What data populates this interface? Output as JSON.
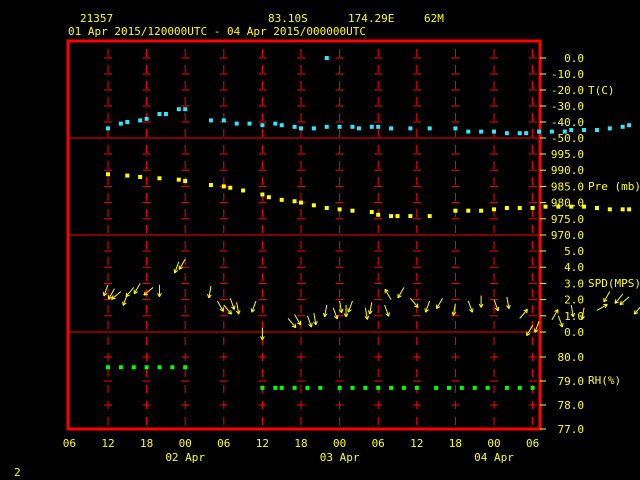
{
  "header": {
    "station_id": "21357",
    "latitude": "83.10S",
    "longitude": "174.29E",
    "elevation": "62M",
    "time_range": "01 Apr 2015/120000UTC - 04 Apr 2015/000000UTC"
  },
  "page_number": "2",
  "colors": {
    "background": "#000000",
    "frame": "#ff0000",
    "grid": "#ff0000",
    "labels": "#ffff00",
    "temperature": "#33e6ff",
    "pressure": "#ffff00",
    "wind": "#ffff00",
    "humidity": "#00ff00"
  },
  "x_axis": {
    "tick_labels": [
      "06",
      "12",
      "18",
      "00",
      "06",
      "12",
      "18",
      "00",
      "06",
      "12",
      "18",
      "00",
      "06"
    ],
    "tick_hours": [
      -6,
      0,
      6,
      12,
      18,
      24,
      30,
      36,
      42,
      48,
      54,
      60,
      66
    ],
    "day_labels": [
      {
        "text": "02 Apr",
        "hour": 12
      },
      {
        "text": "03 Apr",
        "hour": 36
      },
      {
        "text": "04 Apr",
        "hour": 60
      }
    ]
  },
  "chart_data": [
    {
      "type": "scatter",
      "name": "T(C)",
      "ylabel": "T(C)",
      "yticks": [
        "0.0",
        "-10.0",
        "-20.0",
        "-30.0",
        "-40.0",
        "-50.0"
      ],
      "ylim": [
        -50,
        0
      ],
      "x_unit": "hours since 01 Apr 2015 12:00 UTC",
      "points": [
        [
          0,
          -44
        ],
        [
          2,
          -41
        ],
        [
          3,
          -40
        ],
        [
          5,
          -39
        ],
        [
          6,
          -38
        ],
        [
          8,
          -35
        ],
        [
          9,
          -35
        ],
        [
          11,
          -32
        ],
        [
          12,
          -32
        ],
        [
          16,
          -39
        ],
        [
          18,
          -39
        ],
        [
          20,
          -41
        ],
        [
          22,
          -41
        ],
        [
          24,
          -42
        ],
        [
          26,
          -41
        ],
        [
          27,
          -42
        ],
        [
          29,
          -43
        ],
        [
          30,
          -44
        ],
        [
          32,
          -44
        ],
        [
          34,
          -43
        ],
        [
          36,
          -43
        ],
        [
          38,
          -43
        ],
        [
          39,
          -44
        ],
        [
          41,
          -43
        ],
        [
          42,
          -43
        ],
        [
          44,
          -44
        ],
        [
          47,
          -44
        ],
        [
          50,
          -44
        ],
        [
          54,
          -44
        ],
        [
          56,
          -46
        ],
        [
          58,
          -46
        ],
        [
          60,
          -46
        ],
        [
          62,
          -47
        ],
        [
          64,
          -47
        ],
        [
          65,
          -47
        ],
        [
          67,
          -46
        ],
        [
          69,
          -46
        ],
        [
          71,
          -46
        ],
        [
          72,
          -45
        ],
        [
          74,
          -45
        ],
        [
          76,
          -45
        ],
        [
          78,
          -44
        ],
        [
          80,
          -43
        ],
        [
          81,
          -42
        ],
        [
          83,
          -43
        ],
        [
          34,
          0
        ]
      ]
    },
    {
      "type": "scatter",
      "name": "Pre (mb)",
      "ylabel": "Pre (mb)",
      "yticks": [
        "995.0",
        "990.0",
        "985.0",
        "980.0",
        "975.0",
        "970.0"
      ],
      "ylim": [
        970,
        1000
      ],
      "points": [
        [
          0,
          992.5
        ],
        [
          3,
          992
        ],
        [
          5,
          991.5
        ],
        [
          8,
          991
        ],
        [
          11,
          990.5
        ],
        [
          12,
          990
        ],
        [
          16,
          988.5
        ],
        [
          18,
          988
        ],
        [
          19,
          987.5
        ],
        [
          21,
          986.5
        ],
        [
          24,
          985
        ],
        [
          25,
          984
        ],
        [
          27,
          983
        ],
        [
          29,
          982.5
        ],
        [
          30,
          982
        ],
        [
          32,
          981
        ],
        [
          34,
          980
        ],
        [
          36,
          979.5
        ],
        [
          38,
          979
        ],
        [
          41,
          978.5
        ],
        [
          42,
          977.5
        ],
        [
          44,
          977
        ],
        [
          45,
          977
        ],
        [
          47,
          977
        ],
        [
          50,
          977
        ],
        [
          54,
          979
        ],
        [
          56,
          979
        ],
        [
          58,
          979
        ],
        [
          60,
          979.5
        ],
        [
          62,
          980
        ],
        [
          64,
          980
        ],
        [
          66,
          980
        ],
        [
          68,
          980.5
        ],
        [
          70,
          980.5
        ],
        [
          72,
          980.5
        ],
        [
          74,
          980.5
        ],
        [
          76,
          980
        ],
        [
          78,
          979.5
        ],
        [
          80,
          979.5
        ],
        [
          81,
          979.5
        ],
        [
          83,
          979.5
        ],
        [
          86,
          980
        ],
        [
          88,
          980
        ]
      ]
    },
    {
      "type": "scatter",
      "name": "SPD(MPS)",
      "ylabel": "SPD(MPS)",
      "yticks": [
        "5.0",
        "4.0",
        "3.0",
        "2.0",
        "1.0",
        "0.0"
      ],
      "ylim": [
        0,
        6
      ],
      "points": [
        [
          0,
          3.5
        ],
        [
          1,
          3.2
        ],
        [
          2,
          3.0
        ],
        [
          3,
          2.8
        ],
        [
          4,
          3.3
        ],
        [
          5,
          3.6
        ],
        [
          7,
          3.3
        ],
        [
          8,
          3.5
        ],
        [
          11,
          5.2
        ],
        [
          12,
          5.4
        ],
        [
          16,
          3.4
        ],
        [
          17,
          2.3
        ],
        [
          18,
          2.0
        ],
        [
          19,
          2.5
        ],
        [
          20,
          2.2
        ],
        [
          23,
          2.3
        ],
        [
          24,
          0.3
        ],
        [
          28,
          1.0
        ],
        [
          29,
          1.3
        ],
        [
          31,
          1.2
        ],
        [
          32,
          1.4
        ],
        [
          34,
          2.0
        ],
        [
          35,
          1.8
        ],
        [
          36,
          2.3
        ],
        [
          37,
          2.0
        ],
        [
          38,
          2.3
        ],
        [
          40,
          1.8
        ],
        [
          41,
          2.2
        ],
        [
          43,
          2.0
        ],
        [
          44,
          2.4
        ],
        [
          46,
          3.3
        ],
        [
          47,
          2.5
        ],
        [
          50,
          2.3
        ],
        [
          52,
          2.5
        ],
        [
          54,
          2.1
        ],
        [
          56,
          2.3
        ],
        [
          58,
          2.7
        ],
        [
          60,
          2.4
        ],
        [
          62,
          2.6
        ],
        [
          64,
          1.0
        ],
        [
          66,
          0.5
        ],
        [
          67,
          0.8
        ],
        [
          69,
          0.9
        ],
        [
          70,
          1.2
        ],
        [
          72,
          2.0
        ],
        [
          74,
          1.8
        ],
        [
          76,
          1.6
        ],
        [
          78,
          3.0
        ],
        [
          80,
          2.8
        ],
        [
          81,
          2.6
        ],
        [
          83,
          2.0
        ],
        [
          85,
          1.8
        ],
        [
          87,
          2.1
        ]
      ],
      "wind_dirs": [
        200,
        210,
        230,
        200,
        220,
        210,
        230,
        180,
        200,
        210,
        190,
        150,
        140,
        160,
        170,
        200,
        180,
        140,
        150,
        160,
        170,
        190,
        160,
        170,
        180,
        200,
        170,
        190,
        160,
        330,
        210,
        140,
        200,
        210,
        190,
        160,
        180,
        160,
        170,
        40,
        210,
        200,
        30,
        160,
        170,
        190,
        60,
        210,
        220,
        230,
        220,
        200,
        230
      ]
    },
    {
      "type": "scatter",
      "name": "RH(%)",
      "ylabel": "RH(%)",
      "yticks": [
        "80.0",
        "79.0",
        "78.0",
        "77.0"
      ],
      "ylim": [
        77,
        80.5
      ],
      "points": [
        [
          0,
          80
        ],
        [
          2,
          80
        ],
        [
          4,
          80
        ],
        [
          6,
          80
        ],
        [
          8,
          80
        ],
        [
          10,
          80
        ],
        [
          12,
          80
        ],
        [
          24,
          79
        ],
        [
          26,
          79
        ],
        [
          27,
          79
        ],
        [
          29,
          79
        ],
        [
          31,
          79
        ],
        [
          33,
          79
        ],
        [
          36,
          79
        ],
        [
          38,
          79
        ],
        [
          40,
          79
        ],
        [
          42,
          79
        ],
        [
          44,
          79
        ],
        [
          46,
          79
        ],
        [
          48,
          79
        ],
        [
          51,
          79
        ],
        [
          53,
          79
        ],
        [
          55,
          79
        ],
        [
          57,
          79
        ],
        [
          59,
          79
        ],
        [
          62,
          79
        ],
        [
          64,
          79
        ],
        [
          66,
          79
        ],
        [
          68,
          79
        ],
        [
          70,
          79
        ],
        [
          72,
          79
        ],
        [
          74,
          79
        ],
        [
          78,
          78
        ],
        [
          80,
          78
        ],
        [
          82,
          78
        ],
        [
          84,
          78
        ],
        [
          86,
          78
        ],
        [
          88,
          78
        ],
        [
          90,
          78
        ],
        [
          92,
          78
        ],
        [
          94,
          78
        ],
        [
          96,
          78
        ],
        [
          98,
          78
        ],
        [
          100,
          77
        ],
        [
          102,
          77
        ],
        [
          104,
          77
        ]
      ]
    }
  ]
}
